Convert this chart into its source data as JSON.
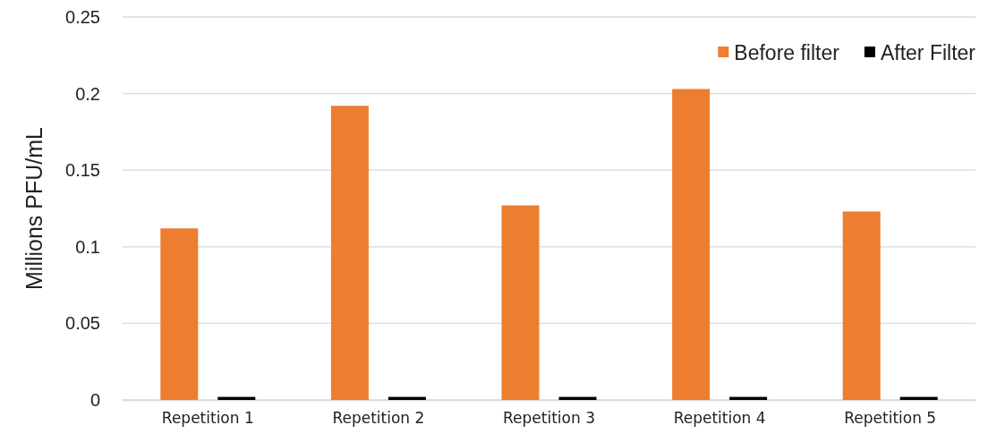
{
  "chart_data": {
    "type": "bar",
    "ylabel": "Millions PFU/mL",
    "categories": [
      "Repetition 1",
      "Repetition 2",
      "Repetition 3",
      "Repetition 4",
      "Repetition 5"
    ],
    "series": [
      {
        "name": "Before filter",
        "color": "#ed7d31",
        "values": [
          0.112,
          0.192,
          0.127,
          0.203,
          0.123
        ]
      },
      {
        "name": "After Filter",
        "color": "#000000",
        "values": [
          0.002,
          0.002,
          0.002,
          0.002,
          0.002
        ]
      }
    ],
    "ylim": [
      0,
      0.25
    ],
    "yticks": [
      0,
      0.05,
      0.1,
      0.15,
      0.2,
      0.25
    ],
    "grid": "y",
    "legend": "top right"
  }
}
